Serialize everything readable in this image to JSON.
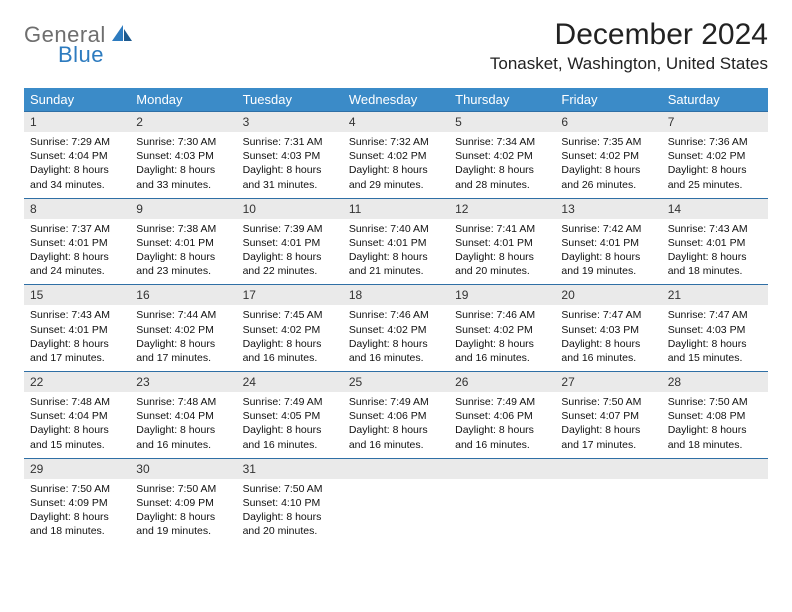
{
  "logo": {
    "part1": "General",
    "part2": "Blue"
  },
  "title": "December 2024",
  "location": "Tonasket, Washington, United States",
  "colors": {
    "header_bg": "#3b8bc8",
    "daynum_bg": "#eaeaea",
    "rule": "#2f6fa5",
    "logo_gray": "#6e6e6e",
    "logo_blue": "#2d7bbf"
  },
  "weekdays": [
    "Sunday",
    "Monday",
    "Tuesday",
    "Wednesday",
    "Thursday",
    "Friday",
    "Saturday"
  ],
  "labels": {
    "sunrise": "Sunrise:",
    "sunset": "Sunset:",
    "daylight": "Daylight:"
  },
  "days": [
    {
      "n": "1",
      "sunrise": "7:29 AM",
      "sunset": "4:04 PM",
      "daylight": "8 hours and 34 minutes."
    },
    {
      "n": "2",
      "sunrise": "7:30 AM",
      "sunset": "4:03 PM",
      "daylight": "8 hours and 33 minutes."
    },
    {
      "n": "3",
      "sunrise": "7:31 AM",
      "sunset": "4:03 PM",
      "daylight": "8 hours and 31 minutes."
    },
    {
      "n": "4",
      "sunrise": "7:32 AM",
      "sunset": "4:02 PM",
      "daylight": "8 hours and 29 minutes."
    },
    {
      "n": "5",
      "sunrise": "7:34 AM",
      "sunset": "4:02 PM",
      "daylight": "8 hours and 28 minutes."
    },
    {
      "n": "6",
      "sunrise": "7:35 AM",
      "sunset": "4:02 PM",
      "daylight": "8 hours and 26 minutes."
    },
    {
      "n": "7",
      "sunrise": "7:36 AM",
      "sunset": "4:02 PM",
      "daylight": "8 hours and 25 minutes."
    },
    {
      "n": "8",
      "sunrise": "7:37 AM",
      "sunset": "4:01 PM",
      "daylight": "8 hours and 24 minutes."
    },
    {
      "n": "9",
      "sunrise": "7:38 AM",
      "sunset": "4:01 PM",
      "daylight": "8 hours and 23 minutes."
    },
    {
      "n": "10",
      "sunrise": "7:39 AM",
      "sunset": "4:01 PM",
      "daylight": "8 hours and 22 minutes."
    },
    {
      "n": "11",
      "sunrise": "7:40 AM",
      "sunset": "4:01 PM",
      "daylight": "8 hours and 21 minutes."
    },
    {
      "n": "12",
      "sunrise": "7:41 AM",
      "sunset": "4:01 PM",
      "daylight": "8 hours and 20 minutes."
    },
    {
      "n": "13",
      "sunrise": "7:42 AM",
      "sunset": "4:01 PM",
      "daylight": "8 hours and 19 minutes."
    },
    {
      "n": "14",
      "sunrise": "7:43 AM",
      "sunset": "4:01 PM",
      "daylight": "8 hours and 18 minutes."
    },
    {
      "n": "15",
      "sunrise": "7:43 AM",
      "sunset": "4:01 PM",
      "daylight": "8 hours and 17 minutes."
    },
    {
      "n": "16",
      "sunrise": "7:44 AM",
      "sunset": "4:02 PM",
      "daylight": "8 hours and 17 minutes."
    },
    {
      "n": "17",
      "sunrise": "7:45 AM",
      "sunset": "4:02 PM",
      "daylight": "8 hours and 16 minutes."
    },
    {
      "n": "18",
      "sunrise": "7:46 AM",
      "sunset": "4:02 PM",
      "daylight": "8 hours and 16 minutes."
    },
    {
      "n": "19",
      "sunrise": "7:46 AM",
      "sunset": "4:02 PM",
      "daylight": "8 hours and 16 minutes."
    },
    {
      "n": "20",
      "sunrise": "7:47 AM",
      "sunset": "4:03 PM",
      "daylight": "8 hours and 16 minutes."
    },
    {
      "n": "21",
      "sunrise": "7:47 AM",
      "sunset": "4:03 PM",
      "daylight": "8 hours and 15 minutes."
    },
    {
      "n": "22",
      "sunrise": "7:48 AM",
      "sunset": "4:04 PM",
      "daylight": "8 hours and 15 minutes."
    },
    {
      "n": "23",
      "sunrise": "7:48 AM",
      "sunset": "4:04 PM",
      "daylight": "8 hours and 16 minutes."
    },
    {
      "n": "24",
      "sunrise": "7:49 AM",
      "sunset": "4:05 PM",
      "daylight": "8 hours and 16 minutes."
    },
    {
      "n": "25",
      "sunrise": "7:49 AM",
      "sunset": "4:06 PM",
      "daylight": "8 hours and 16 minutes."
    },
    {
      "n": "26",
      "sunrise": "7:49 AM",
      "sunset": "4:06 PM",
      "daylight": "8 hours and 16 minutes."
    },
    {
      "n": "27",
      "sunrise": "7:50 AM",
      "sunset": "4:07 PM",
      "daylight": "8 hours and 17 minutes."
    },
    {
      "n": "28",
      "sunrise": "7:50 AM",
      "sunset": "4:08 PM",
      "daylight": "8 hours and 18 minutes."
    },
    {
      "n": "29",
      "sunrise": "7:50 AM",
      "sunset": "4:09 PM",
      "daylight": "8 hours and 18 minutes."
    },
    {
      "n": "30",
      "sunrise": "7:50 AM",
      "sunset": "4:09 PM",
      "daylight": "8 hours and 19 minutes."
    },
    {
      "n": "31",
      "sunrise": "7:50 AM",
      "sunset": "4:10 PM",
      "daylight": "8 hours and 20 minutes."
    }
  ],
  "trailing_empty": 4
}
